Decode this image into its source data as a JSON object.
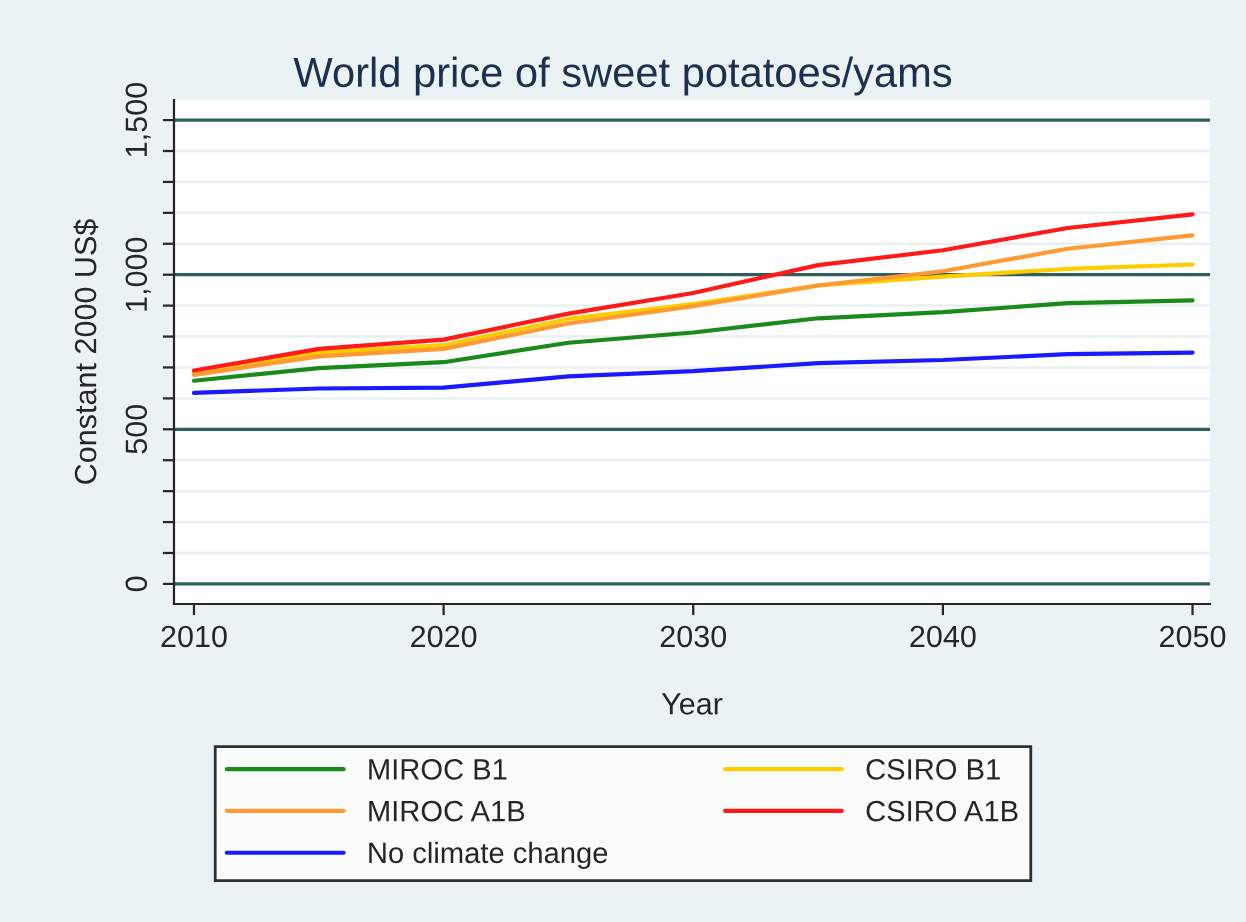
{
  "chart_data": {
    "type": "line",
    "title": "World price of sweet potatoes/yams",
    "xlabel": "Year",
    "ylabel": "Constant 2000 US$",
    "x": [
      2010,
      2015,
      2020,
      2025,
      2030,
      2035,
      2040,
      2045,
      2050
    ],
    "series": [
      {
        "name": "MIROC B1",
        "color": "#1a8a1a",
        "values": [
          657,
          698,
          717,
          780,
          813,
          859,
          879,
          908,
          917
        ]
      },
      {
        "name": "CSIRO B1",
        "color": "#ffcc00",
        "values": [
          683,
          748,
          772,
          857,
          905,
          965,
          994,
          1019,
          1033
        ]
      },
      {
        "name": "MIROC A1B",
        "color": "#ff9933",
        "values": [
          676,
          736,
          760,
          842,
          898,
          965,
          1011,
          1084,
          1127
        ]
      },
      {
        "name": "CSIRO A1B",
        "color": "#ff1a1a",
        "values": [
          690,
          760,
          790,
          874,
          941,
          1031,
          1079,
          1151,
          1195
        ]
      },
      {
        "name": "No climate change",
        "color": "#1a1aff",
        "values": [
          618,
          632,
          635,
          671,
          688,
          714,
          724,
          743,
          748
        ]
      }
    ],
    "xlim": [
      2009.2,
      2050.7
    ],
    "xticks": [
      2010,
      2020,
      2030,
      2040,
      2050
    ],
    "ylim": [
      -65,
      1565
    ],
    "yticks": [
      {
        "value": 0,
        "label": "0"
      },
      {
        "value": 100,
        "label": null
      },
      {
        "value": 200,
        "label": null
      },
      {
        "value": 300,
        "label": null
      },
      {
        "value": 400,
        "label": null
      },
      {
        "value": 500,
        "label": "500"
      },
      {
        "value": 600,
        "label": null
      },
      {
        "value": 700,
        "label": null
      },
      {
        "value": 800,
        "label": null
      },
      {
        "value": 900,
        "label": null
      },
      {
        "value": 1000,
        "label": "1,000"
      },
      {
        "value": 1100,
        "label": null
      },
      {
        "value": 1200,
        "label": null
      },
      {
        "value": 1300,
        "label": null
      },
      {
        "value": 1400,
        "label": null
      },
      {
        "value": 1500,
        "label": "1,500"
      }
    ],
    "grid": "y",
    "legend": "bottom",
    "marker": "none",
    "line_style": "solid"
  }
}
